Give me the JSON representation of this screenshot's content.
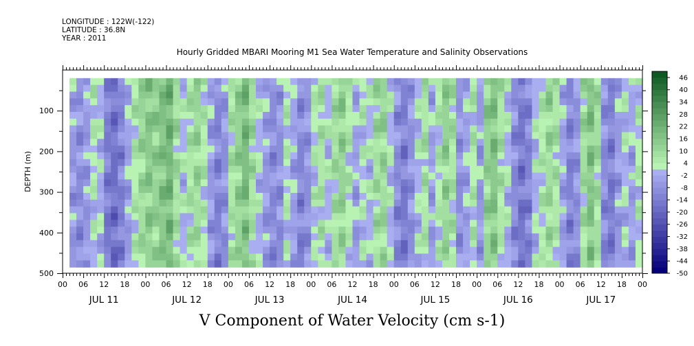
{
  "header": {
    "longitude": "LONGITUDE : 122W(-122)",
    "latitude": "LATITUDE : 36.8N",
    "year": "YEAR : 2011"
  },
  "chart_data": {
    "type": "heatmap",
    "title": "Hourly Gridded MBARI Mooring M1 Sea Water Temperature and Salinity Observations",
    "xlabel": "V Component of Water Velocity (cm s-1)",
    "ylabel": "DEPTH (m)",
    "x_tick_labels": [
      "00",
      "06",
      "12",
      "18",
      "00",
      "06",
      "12",
      "18",
      "00",
      "06",
      "12",
      "18",
      "00",
      "06",
      "12",
      "18",
      "00",
      "06",
      "12",
      "18",
      "00",
      "06",
      "12",
      "18",
      "00",
      "06",
      "12",
      "18",
      "00"
    ],
    "day_labels": [
      "JUL 11",
      "JUL 12",
      "JUL 13",
      "JUL 14",
      "JUL 15",
      "JUL 16",
      "JUL 17"
    ],
    "y_tick_labels": [
      "100",
      "200",
      "300",
      "400",
      "500"
    ],
    "y_ticks": [
      100,
      200,
      300,
      400,
      500
    ],
    "ylim": [
      500,
      0
    ],
    "depth_range": [
      20,
      485
    ],
    "time_range_hours": [
      0,
      168
    ],
    "colorbar_labels": [
      "46",
      "40",
      "34",
      "28",
      "22",
      "16",
      "10",
      "4",
      "-2",
      "-8",
      "-14",
      "-20",
      "-26",
      "-32",
      "-38",
      "-44",
      "-50"
    ],
    "colorbar_levels": [
      -50,
      -47,
      -44,
      -41,
      -38,
      -35,
      -32,
      -29,
      -26,
      -23,
      -20,
      -17,
      -14,
      -11,
      -8,
      -5,
      -2,
      1,
      4,
      7,
      10,
      13,
      16,
      19,
      22,
      25,
      28,
      31,
      34,
      37,
      40,
      43,
      46,
      49
    ],
    "column_profile": [
      {
        "hour": 0,
        "v": null
      },
      {
        "hour": 2,
        "v": -4
      },
      {
        "hour": 4,
        "v": -7
      },
      {
        "hour": 6,
        "v": -4
      },
      {
        "hour": 8,
        "v": 4
      },
      {
        "hour": 10,
        "v": 1
      },
      {
        "hour": 12,
        "v": -12
      },
      {
        "hour": 14,
        "v": -16
      },
      {
        "hour": 16,
        "v": -10
      },
      {
        "hour": 18,
        "v": -2
      },
      {
        "hour": 20,
        "v": 6
      },
      {
        "hour": 22,
        "v": 12
      },
      {
        "hour": 24,
        "v": 16
      },
      {
        "hour": 26,
        "v": 14
      },
      {
        "hour": 28,
        "v": 18
      },
      {
        "hour": 30,
        "v": 22
      },
      {
        "hour": 32,
        "v": 10
      },
      {
        "hour": 34,
        "v": 2
      },
      {
        "hour": 36,
        "v": 8
      },
      {
        "hour": 38,
        "v": 12
      },
      {
        "hour": 40,
        "v": 6
      },
      {
        "hour": 42,
        "v": -4
      },
      {
        "hour": 44,
        "v": -10
      },
      {
        "hour": 46,
        "v": -6
      },
      {
        "hour": 48,
        "v": 8
      },
      {
        "hour": 50,
        "v": 14
      },
      {
        "hour": 52,
        "v": 20
      },
      {
        "hour": 54,
        "v": 10
      },
      {
        "hour": 56,
        "v": 2
      },
      {
        "hour": 58,
        "v": -4
      },
      {
        "hour": 60,
        "v": -8
      },
      {
        "hour": 62,
        "v": -6
      },
      {
        "hour": 64,
        "v": 4
      },
      {
        "hour": 66,
        "v": -2
      },
      {
        "hour": 68,
        "v": -10
      },
      {
        "hour": 70,
        "v": -6
      },
      {
        "hour": 72,
        "v": 4
      },
      {
        "hour": 74,
        "v": 8
      },
      {
        "hour": 76,
        "v": 2
      },
      {
        "hour": 78,
        "v": 10
      },
      {
        "hour": 80,
        "v": 14
      },
      {
        "hour": 82,
        "v": 6
      },
      {
        "hour": 84,
        "v": -2
      },
      {
        "hour": 86,
        "v": 4
      },
      {
        "hour": 88,
        "v": 2
      },
      {
        "hour": 90,
        "v": 10
      },
      {
        "hour": 92,
        "v": 12
      },
      {
        "hour": 94,
        "v": 2
      },
      {
        "hour": 96,
        "v": -8
      },
      {
        "hour": 98,
        "v": -12
      },
      {
        "hour": 100,
        "v": -6
      },
      {
        "hour": 102,
        "v": 2
      },
      {
        "hour": 104,
        "v": 8
      },
      {
        "hour": 106,
        "v": -2
      },
      {
        "hour": 108,
        "v": 6
      },
      {
        "hour": 110,
        "v": 14
      },
      {
        "hour": 112,
        "v": 8
      },
      {
        "hour": 114,
        "v": -6
      },
      {
        "hour": 116,
        "v": -2
      },
      {
        "hour": 118,
        "v": 6
      },
      {
        "hour": 120,
        "v": -4
      },
      {
        "hour": 122,
        "v": 14
      },
      {
        "hour": 124,
        "v": 18
      },
      {
        "hour": 126,
        "v": 8
      },
      {
        "hour": 128,
        "v": 2
      },
      {
        "hour": 130,
        "v": -8
      },
      {
        "hour": 132,
        "v": -14
      },
      {
        "hour": 134,
        "v": -10
      },
      {
        "hour": 136,
        "v": 2
      },
      {
        "hour": 138,
        "v": 6
      },
      {
        "hour": 140,
        "v": 12
      },
      {
        "hour": 142,
        "v": 8
      },
      {
        "hour": 144,
        "v": -2
      },
      {
        "hour": 146,
        "v": -10
      },
      {
        "hour": 148,
        "v": -6
      },
      {
        "hour": 150,
        "v": 10
      },
      {
        "hour": 152,
        "v": 18
      },
      {
        "hour": 154,
        "v": 10
      },
      {
        "hour": 156,
        "v": -8
      },
      {
        "hour": 158,
        "v": -12
      },
      {
        "hour": 160,
        "v": -4
      },
      {
        "hour": 162,
        "v": 2
      },
      {
        "hour": 164,
        "v": -2
      },
      {
        "hour": 166,
        "v": 4
      },
      {
        "hour": 168,
        "v": 0
      }
    ],
    "colors": {
      "strong_negative": "#06007a",
      "weak_negative": "#a9aef0",
      "weak_positive": "#b9f3b4",
      "strong_positive": "#0f5a23"
    }
  }
}
